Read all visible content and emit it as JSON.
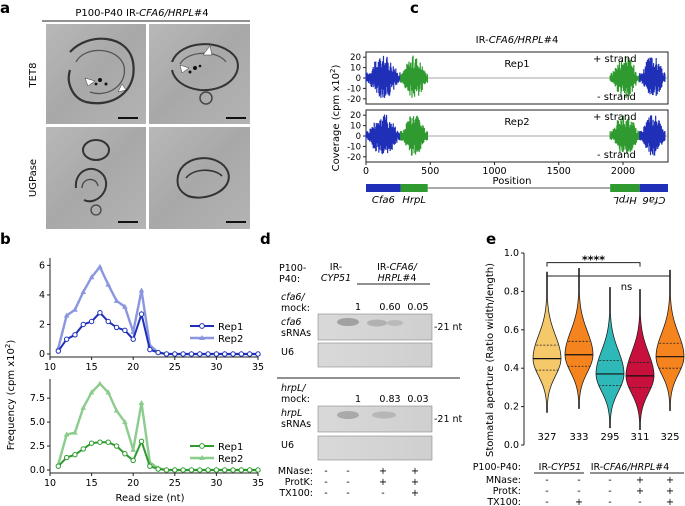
{
  "panels": {
    "a": "a",
    "b": "b",
    "c": "c",
    "d": "d",
    "e": "e"
  },
  "a": {
    "title_pre": "P100-P40 IR-",
    "title_ital": "CFA6/HRPL",
    "title_post": "#4",
    "row1": "TET8",
    "row2": "UGPase"
  },
  "b": {
    "xlabel": "Read size (nt)",
    "ylabel": "Frequency (cpm x10",
    "ylabel_sup": "2",
    "ylabel_end": ")",
    "legend": [
      "Rep1",
      "Rep2"
    ],
    "colors": {
      "blue_rep1": "#1f2fb8",
      "blue_rep2": "#8a96df",
      "green_rep1": "#2f9a2f",
      "green_rep2": "#8ccc8c"
    },
    "x": [
      11,
      12,
      13,
      14,
      15,
      16,
      17,
      18,
      19,
      20,
      21,
      22,
      23,
      24,
      25,
      26,
      27,
      28,
      29,
      30,
      31,
      32,
      33,
      34,
      35
    ],
    "top": {
      "yticks": [
        "0",
        "2",
        "4",
        "6"
      ],
      "xticks": [
        "10",
        "15",
        "20",
        "25",
        "30",
        "35"
      ],
      "rep1": [
        0.2,
        1.0,
        1.3,
        2.0,
        2.2,
        2.8,
        2.2,
        1.8,
        1.6,
        1.0,
        2.7,
        0.3,
        0.1,
        0,
        0,
        0,
        0,
        0,
        0,
        0,
        0,
        0,
        0,
        0,
        0
      ],
      "rep2": [
        0.4,
        2.6,
        3.0,
        4.2,
        5.2,
        5.9,
        4.7,
        3.6,
        3.2,
        1.5,
        4.3,
        0.6,
        0.1,
        0,
        0,
        0,
        0,
        0,
        0,
        0,
        0,
        0,
        0,
        0,
        0
      ]
    },
    "bottom": {
      "yticks": [
        "0.0",
        "2.5",
        "5.0",
        "7.5"
      ],
      "xticks": [
        "10",
        "15",
        "20",
        "25",
        "30",
        "35"
      ],
      "rep1": [
        0.4,
        1.3,
        1.6,
        2.2,
        2.8,
        2.9,
        2.9,
        2.5,
        1.7,
        1.0,
        3.0,
        0.4,
        0.1,
        0,
        0,
        0,
        0,
        0,
        0,
        0,
        0,
        0,
        0,
        0,
        0
      ],
      "rep2": [
        0.6,
        3.7,
        3.9,
        6.5,
        8.1,
        9.0,
        8.1,
        6.2,
        5.0,
        2.1,
        7.0,
        0.8,
        0.2,
        0,
        0,
        0,
        0,
        0,
        0,
        0,
        0,
        0,
        0,
        0,
        0
      ]
    }
  },
  "c": {
    "title_pre": "IR-",
    "title_ital": "CFA6/HRPL",
    "title_post": "#4",
    "ylabel": "Coverage (cpm x10",
    "ylabel_sup": "2",
    "ylabel_end": ")",
    "xlabel": "Position",
    "rep_labels": [
      "Rep1",
      "Rep2"
    ],
    "plus_strand": "+ strand",
    "minus_strand": "- strand",
    "yticks": [
      "20",
      "10",
      "0",
      "-10",
      "-20"
    ],
    "xticks": [
      "0",
      "500",
      "1000",
      "1500",
      "2000"
    ],
    "genes": [
      "Cfa6",
      "HrpL",
      "HrpL",
      "Cfa6"
    ],
    "colors": {
      "blue": "#1f2fb8",
      "green": "#2f9a2f"
    }
  },
  "d": {
    "group_label": "P100-\nP40:",
    "control_label": "IR-",
    "control_ital": "CYP51",
    "ir_label": "IR-",
    "ir_ital": "CFA6/",
    "ir_ital2": "HRPL",
    "ir_post": "#4",
    "top_ratio_label": [
      "cfa6/",
      "mock:"
    ],
    "top_ratios": [
      "1",
      "0.60",
      "0.05"
    ],
    "top_rna_label": [
      "cfa6",
      "sRNAs"
    ],
    "bottom_ratio_label": [
      "hrpL/",
      "mock:"
    ],
    "bottom_ratios": [
      "1",
      "0.83",
      "0.03"
    ],
    "bottom_rna_label": [
      "hrpL",
      "sRNAs"
    ],
    "nt_marker": "-21 nt",
    "u6": "U6",
    "treatments": [
      "MNase:",
      "ProtK:",
      "TX100:"
    ],
    "rows": [
      [
        "-",
        "-",
        "+",
        "+"
      ],
      [
        "-",
        "-",
        "+",
        "+"
      ],
      [
        "-",
        "-",
        "-",
        "+"
      ]
    ]
  },
  "e": {
    "ylabel": "Stomatal aperture (Ratio width/length)",
    "yticks": [
      "0.0",
      "0.2",
      "0.4",
      "0.6",
      "0.8",
      "1.0"
    ],
    "sig1": "****",
    "sig2": "ns",
    "counts": [
      "327",
      "333",
      "295",
      "311",
      "325"
    ],
    "colors": [
      "#f5c86a",
      "#f5841f",
      "#2fb8b8",
      "#c8103c",
      "#f5841f"
    ],
    "medians": [
      0.45,
      0.47,
      0.37,
      0.36,
      0.46
    ],
    "group_label": "P100-P40:",
    "control_label": "IR-",
    "control_ital": "CYP51",
    "ir_label": "IR-",
    "ir_ital": "CFA6/HRPL",
    "ir_post": "#4",
    "treatments": [
      "MNase:",
      "ProtK:",
      "TX100:"
    ],
    "rows": [
      [
        "-",
        "-",
        "-",
        "+",
        "+"
      ],
      [
        "-",
        "-",
        "-",
        "+",
        "+"
      ],
      [
        "-",
        "+",
        "-",
        "-",
        "+"
      ]
    ]
  }
}
